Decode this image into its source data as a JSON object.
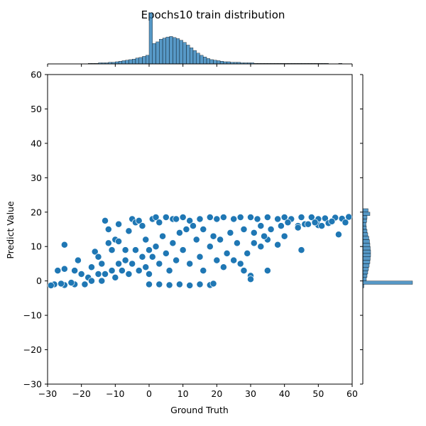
{
  "chart_data": {
    "type": "scatter",
    "title": "Epochs10 train distribution",
    "xlabel": "Ground Truth",
    "ylabel": "Predict Value",
    "xlim": [
      -30,
      60
    ],
    "ylim": [
      -30,
      60
    ],
    "xticks": [
      -30,
      -20,
      -10,
      0,
      10,
      20,
      30,
      40,
      50,
      60
    ],
    "yticks": [
      -30,
      -20,
      -10,
      0,
      10,
      20,
      30,
      40,
      50,
      60
    ],
    "grid": false,
    "colors": {
      "point": "#1f77b4",
      "hist": "#1f77b4",
      "point_edge": "#ffffff",
      "hist_edge": "#000000"
    },
    "points": [
      [
        -28,
        -1
      ],
      [
        -25,
        -1.2
      ],
      [
        -22,
        -1
      ],
      [
        -19,
        -1
      ],
      [
        -27,
        3
      ],
      [
        -25,
        3.5
      ],
      [
        -25,
        10.5
      ],
      [
        -22,
        3
      ],
      [
        -21,
        6
      ],
      [
        -20,
        2
      ],
      [
        -18,
        1
      ],
      [
        -17,
        4
      ],
      [
        -16,
        8.5
      ],
      [
        -15,
        7
      ],
      [
        -14,
        5
      ],
      [
        -12,
        11
      ],
      [
        -12,
        15
      ],
      [
        -13,
        17.5
      ],
      [
        -10,
        12
      ],
      [
        -11,
        9
      ],
      [
        -9,
        16.5
      ],
      [
        -9,
        11.5
      ],
      [
        -7,
        9
      ],
      [
        -6,
        14.5
      ],
      [
        -5,
        18
      ],
      [
        -4,
        17
      ],
      [
        -3,
        17.5
      ],
      [
        -2,
        16
      ],
      [
        -1,
        12
      ],
      [
        1,
        18
      ],
      [
        2,
        18.5
      ],
      [
        3,
        17
      ],
      [
        5,
        18.5
      ],
      [
        7,
        18
      ],
      [
        8,
        18
      ],
      [
        10,
        18.5
      ],
      [
        12,
        17.5
      ],
      [
        15,
        18
      ],
      [
        18,
        18.5
      ],
      [
        20,
        18
      ],
      [
        22,
        18.5
      ],
      [
        25,
        18
      ],
      [
        27,
        18.5
      ],
      [
        30,
        18.5
      ],
      [
        32,
        18
      ],
      [
        35,
        18.5
      ],
      [
        38,
        18
      ],
      [
        40,
        18.5
      ],
      [
        42,
        18
      ],
      [
        45,
        18.5
      ],
      [
        48,
        18.5
      ],
      [
        50,
        18
      ],
      [
        52,
        18.2
      ],
      [
        55,
        18.4
      ],
      [
        57,
        18.1
      ],
      [
        59,
        18.6
      ],
      [
        44,
        16
      ],
      [
        46,
        16.5
      ],
      [
        50,
        16.2
      ],
      [
        53,
        16.8
      ],
      [
        56,
        13.5
      ],
      [
        45,
        9
      ],
      [
        40,
        13
      ],
      [
        38,
        10.5
      ],
      [
        35,
        12
      ],
      [
        33,
        10
      ],
      [
        30,
        1.5
      ],
      [
        30,
        0.5
      ],
      [
        28,
        3
      ],
      [
        35,
        3
      ],
      [
        27,
        5
      ],
      [
        25,
        6
      ],
      [
        23,
        8
      ],
      [
        22,
        4
      ],
      [
        20,
        6
      ],
      [
        18,
        10
      ],
      [
        16,
        3
      ],
      [
        15,
        7
      ],
      [
        14,
        12
      ],
      [
        12,
        5
      ],
      [
        10,
        9
      ],
      [
        9,
        14
      ],
      [
        8,
        6
      ],
      [
        7,
        11
      ],
      [
        6,
        3
      ],
      [
        5,
        8
      ],
      [
        4,
        13
      ],
      [
        3,
        5
      ],
      [
        2,
        10
      ],
      [
        1,
        7
      ],
      [
        0,
        2
      ],
      [
        0,
        9
      ],
      [
        -1,
        4
      ],
      [
        -2,
        7
      ],
      [
        -3,
        3
      ],
      [
        -4,
        9
      ],
      [
        -5,
        5
      ],
      [
        -6,
        2
      ],
      [
        -7,
        6
      ],
      [
        -8,
        3
      ],
      [
        -9,
        5
      ],
      [
        -10,
        1
      ],
      [
        -11,
        3
      ],
      [
        -13,
        2
      ],
      [
        -14,
        0
      ],
      [
        -15,
        2
      ],
      [
        -17,
        0
      ],
      [
        -23,
        -0.5
      ],
      [
        -26,
        -0.8
      ],
      [
        -29,
        -1.3
      ],
      [
        0,
        -1
      ],
      [
        3,
        -1
      ],
      [
        6,
        -1.2
      ],
      [
        9,
        -1
      ],
      [
        12,
        -1.3
      ],
      [
        15,
        -1
      ],
      [
        18,
        -1.2
      ],
      [
        19,
        -0.8
      ],
      [
        11,
        15
      ],
      [
        13,
        16
      ],
      [
        16,
        15
      ],
      [
        19,
        13
      ],
      [
        21,
        12
      ],
      [
        24,
        14
      ],
      [
        26,
        11
      ],
      [
        28,
        15
      ],
      [
        31,
        14
      ],
      [
        33,
        16
      ],
      [
        36,
        15
      ],
      [
        39,
        16
      ],
      [
        41,
        17
      ],
      [
        44,
        15.5
      ],
      [
        47,
        16.5
      ],
      [
        49,
        17
      ],
      [
        51,
        16
      ],
      [
        54,
        17.3
      ],
      [
        58,
        17
      ],
      [
        29,
        8
      ],
      [
        31,
        11
      ],
      [
        34,
        13
      ]
    ],
    "hist_x": {
      "bin_start": -30,
      "bin_width": 1,
      "counts": [
        0,
        0,
        0,
        0,
        0,
        0,
        0,
        0,
        0,
        0,
        0,
        0,
        1,
        1,
        1,
        2,
        2,
        2,
        3,
        3,
        4,
        5,
        6,
        7,
        8,
        9,
        11,
        12,
        14,
        16,
        95,
        38,
        41,
        46,
        48,
        50,
        51,
        49,
        47,
        44,
        40,
        35,
        30,
        25,
        20,
        16,
        13,
        10,
        8,
        7,
        6,
        5,
        4,
        4,
        3,
        3,
        3,
        2,
        2,
        2,
        2,
        1,
        1,
        1,
        1,
        1,
        1,
        1,
        1,
        1,
        1,
        1,
        1,
        1,
        1,
        1,
        1,
        1,
        1,
        1,
        1,
        1,
        1,
        0,
        0,
        0,
        1,
        0,
        0,
        0
      ]
    },
    "hist_y": {
      "bin_start": -30,
      "bin_width": 1,
      "counts": [
        0,
        0,
        0,
        0,
        0,
        0,
        0,
        0,
        0,
        0,
        0,
        0,
        0,
        0,
        0,
        0,
        0,
        0,
        0,
        0,
        0,
        0,
        0,
        0,
        0,
        0,
        0,
        0,
        3,
        140,
        10,
        12,
        14,
        16,
        18,
        20,
        21,
        22,
        22,
        21,
        20,
        19,
        17,
        14,
        12,
        10,
        9,
        11,
        12,
        20,
        15,
        0,
        0,
        0,
        0,
        0,
        0,
        0,
        0,
        0,
        0,
        0,
        0,
        0,
        0,
        0,
        0,
        0,
        0,
        0,
        0,
        0,
        0,
        0,
        0,
        0,
        0,
        0,
        0,
        0,
        0,
        0,
        0,
        0,
        0,
        0,
        0,
        0,
        0,
        0
      ]
    }
  }
}
